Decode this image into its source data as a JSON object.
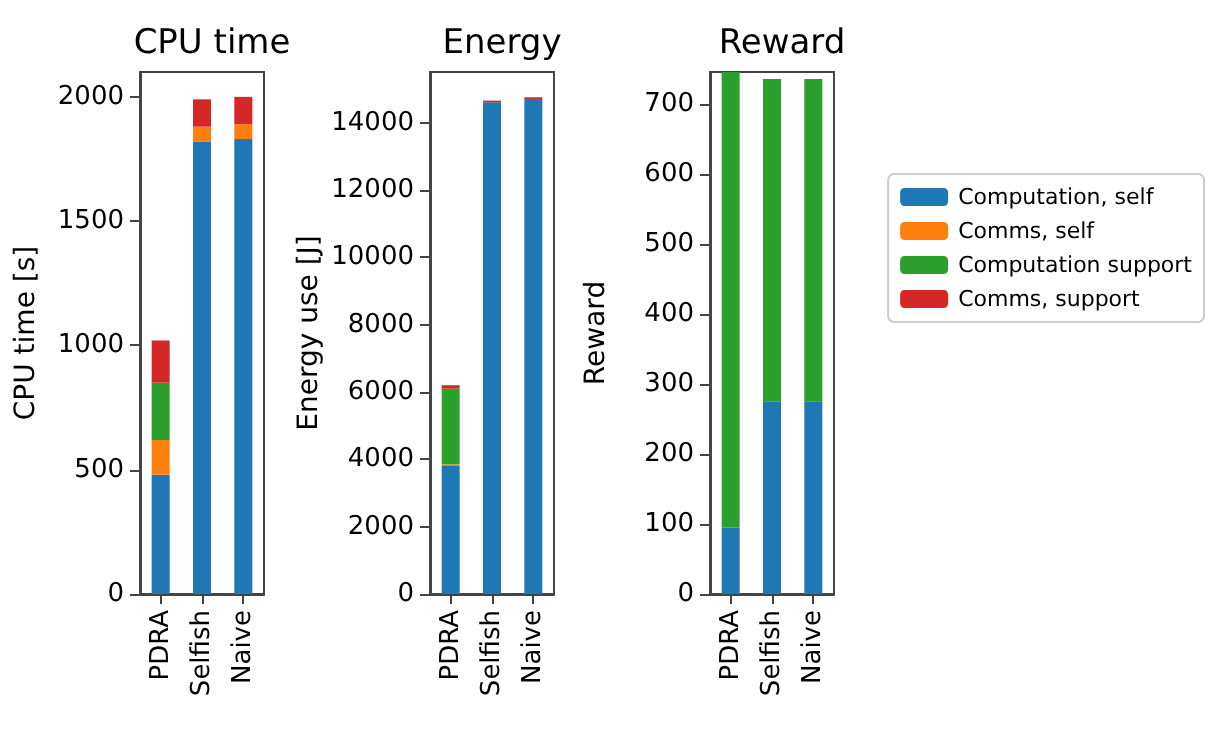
{
  "chart_data": [
    {
      "type": "bar",
      "title": "CPU time",
      "ylabel": "CPU time [s]",
      "categories": [
        "PDRA",
        "Selfish",
        "Naive"
      ],
      "stacked": true,
      "ylim": [
        0,
        2100
      ],
      "yticks": [
        0,
        500,
        1000,
        1500,
        2000
      ],
      "grid": false,
      "series": [
        {
          "color": "#1f77b4",
          "values": [
            480,
            1820,
            1830
          ]
        },
        {
          "color": "#ff7f0e",
          "values": [
            140,
            60,
            60
          ]
        },
        {
          "color": "#2ca02c",
          "values": [
            230,
            0,
            0
          ]
        },
        {
          "color": "#d62728",
          "values": [
            170,
            110,
            110
          ]
        }
      ]
    },
    {
      "type": "bar",
      "title": "Energy",
      "ylabel": "Energy use [J]",
      "categories": [
        "PDRA",
        "Selfish",
        "Naive"
      ],
      "stacked": true,
      "ylim": [
        0,
        15500
      ],
      "yticks": [
        0,
        2000,
        4000,
        6000,
        8000,
        10000,
        12000,
        14000
      ],
      "grid": false,
      "series": [
        {
          "color": "#1f77b4",
          "values": [
            3800,
            14600,
            14700
          ]
        },
        {
          "color": "#ff7f0e",
          "values": [
            50,
            0,
            0
          ]
        },
        {
          "color": "#2ca02c",
          "values": [
            2250,
            0,
            0
          ]
        },
        {
          "color": "#d62728",
          "values": [
            100,
            50,
            50
          ]
        }
      ]
    },
    {
      "type": "bar",
      "title": "Reward",
      "ylabel": "Reward",
      "categories": [
        "PDRA",
        "Selfish",
        "Naive"
      ],
      "stacked": true,
      "ylim": [
        0,
        745
      ],
      "yticks": [
        0,
        100,
        200,
        300,
        400,
        500,
        600,
        700
      ],
      "grid": false,
      "legend": "right",
      "series": [
        {
          "name": "Computation, self",
          "color": "#1f77b4",
          "values": [
            95,
            275,
            275
          ]
        },
        {
          "name": "Comms, self",
          "color": "#ff7f0e",
          "values": [
            0,
            0,
            0
          ]
        },
        {
          "name": "Computation support",
          "color": "#2ca02c",
          "values": [
            650,
            460,
            460
          ]
        },
        {
          "name": "Comms, support",
          "color": "#d62728",
          "values": [
            0,
            0,
            0
          ]
        }
      ]
    }
  ]
}
